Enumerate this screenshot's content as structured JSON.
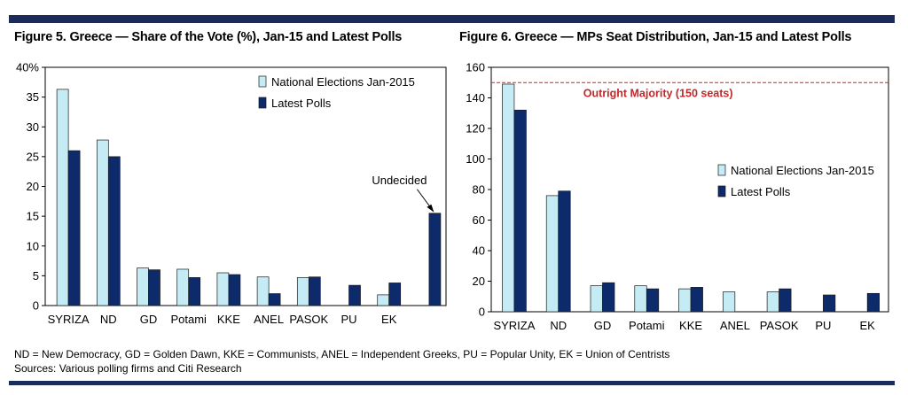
{
  "colors": {
    "national": "#c5ecf4",
    "latest": "#0d2a6b",
    "majority_line": "#e02020",
    "majority_text": "#c0282a",
    "frame_rule": "#1a2d5a"
  },
  "footnotes": {
    "line1": "ND = New Democracy, GD = Golden Dawn, KKE = Communists, ANEL = Independent Greeks, PU = Popular Unity, EK = Union of Centrists",
    "line2": "Sources: Various polling firms and Citi Research"
  },
  "chart_data": [
    {
      "type": "bar",
      "title": "Figure 5. Greece — Share of the Vote (%), Jan-15 and Latest Polls",
      "categories": [
        "SYRIZA",
        "ND",
        "GD",
        "Potami",
        "KKE",
        "ANEL",
        "PASOK",
        "PU",
        "EK",
        ""
      ],
      "series": [
        {
          "name": "National Elections Jan-2015",
          "values": [
            36.3,
            27.8,
            6.3,
            6.1,
            5.5,
            4.8,
            4.7,
            null,
            1.8,
            null
          ]
        },
        {
          "name": "Latest Polls",
          "values": [
            26.0,
            25.0,
            6.0,
            4.7,
            5.2,
            2.0,
            4.8,
            3.4,
            3.8,
            15.5
          ]
        }
      ],
      "ylim": [
        0,
        40
      ],
      "yticks": [
        "0",
        "5",
        "10",
        "15",
        "20",
        "25",
        "30",
        "35",
        "40%"
      ],
      "annotation": "Undecided",
      "legend": "top-right",
      "grid": false
    },
    {
      "type": "bar",
      "title": "Figure 6. Greece — MPs Seat Distribution, Jan-15 and Latest Polls",
      "categories": [
        "SYRIZA",
        "ND",
        "GD",
        "Potami",
        "KKE",
        "ANEL",
        "PASOK",
        "PU",
        "EK"
      ],
      "series": [
        {
          "name": "National Elections Jan-2015",
          "values": [
            149,
            76,
            17,
            17,
            15,
            13,
            13,
            null,
            null
          ]
        },
        {
          "name": "Latest Polls",
          "values": [
            132,
            79,
            19,
            15,
            16,
            null,
            15,
            11,
            12
          ]
        }
      ],
      "ylim": [
        0,
        160
      ],
      "yticks": [
        "0",
        "20",
        "40",
        "60",
        "80",
        "100",
        "120",
        "140",
        "160"
      ],
      "reference_line": {
        "value": 150,
        "label": "Outright Majority (150 seats)"
      },
      "legend": "center-right",
      "grid": false
    }
  ]
}
